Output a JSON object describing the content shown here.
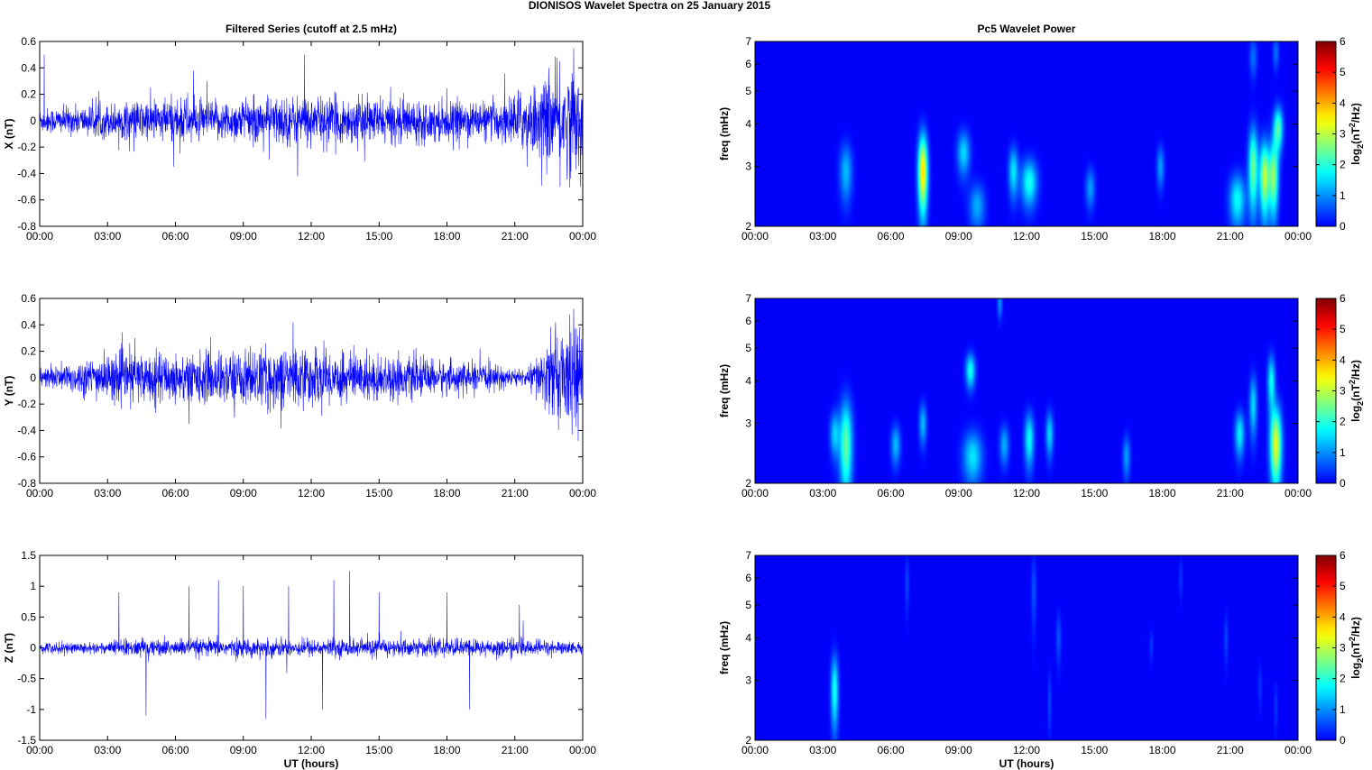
{
  "figure": {
    "suptitle": "DIONISOS Wavelet Spectra on 25 January   2015"
  },
  "chart_data": [
    {
      "type": "line",
      "panel": "X time series",
      "title": "Filtered Series (cutoff at 2.5 mHz)",
      "xlabel": "",
      "ylabel": "X (nT)",
      "xlim": [
        "00:00",
        "24:00"
      ],
      "ylim": [
        -0.8,
        0.6
      ],
      "xticks": [
        "00:00",
        "03:00",
        "06:00",
        "09:00",
        "12:00",
        "15:00",
        "18:00",
        "21:00",
        "00:00"
      ],
      "yticks": [
        "-0.8",
        "-0.6",
        "-0.4",
        "-0.2",
        "0",
        "0.2",
        "0.4",
        "0.6"
      ],
      "series_color": "#0000ff",
      "noise_amplitude_nT": 0.06,
      "envelope": [
        [
          0,
          0.1
        ],
        [
          2,
          0.12
        ],
        [
          6.5,
          0.2
        ],
        [
          7,
          0.15
        ],
        [
          11,
          0.2
        ],
        [
          20,
          0.15
        ],
        [
          22,
          0.3
        ],
        [
          23.5,
          0.45
        ],
        [
          24,
          0.3
        ]
      ],
      "spikes": [
        [
          0.2,
          0.5
        ],
        [
          6.8,
          0.38
        ],
        [
          7.4,
          0.3
        ],
        [
          11.4,
          -0.42
        ],
        [
          11.7,
          0.5
        ],
        [
          22.5,
          0.4
        ],
        [
          23.0,
          -0.5
        ],
        [
          23.6,
          0.55
        ],
        [
          23.9,
          -0.5
        ]
      ]
    },
    {
      "type": "line",
      "panel": "Y time series",
      "title": "",
      "xlabel": "",
      "ylabel": "Y (nT)",
      "xlim": [
        "00:00",
        "24:00"
      ],
      "ylim": [
        -0.8,
        0.6
      ],
      "xticks": [
        "00:00",
        "03:00",
        "06:00",
        "09:00",
        "12:00",
        "15:00",
        "18:00",
        "21:00",
        "00:00"
      ],
      "yticks": [
        "-0.8",
        "-0.6",
        "-0.4",
        "-0.2",
        "0",
        "0.2",
        "0.4",
        "0.6"
      ],
      "series_color": "#0000ff",
      "noise_amplitude_nT": 0.06,
      "envelope": [
        [
          0,
          0.08
        ],
        [
          3.5,
          0.2
        ],
        [
          7,
          0.2
        ],
        [
          11,
          0.25
        ],
        [
          20,
          0.1
        ],
        [
          21.5,
          0.06
        ],
        [
          22.5,
          0.3
        ],
        [
          23.5,
          0.45
        ],
        [
          24,
          0.3
        ]
      ],
      "spikes": [
        [
          4.2,
          0.3
        ],
        [
          6.6,
          -0.35
        ],
        [
          11.2,
          0.42
        ],
        [
          22.8,
          0.42
        ],
        [
          23.6,
          0.52
        ],
        [
          23.8,
          -0.48
        ]
      ]
    },
    {
      "type": "line",
      "panel": "Z time series",
      "title": "",
      "xlabel": "UT (hours)",
      "ylabel": "Z (nT)",
      "xlim": [
        "00:00",
        "24:00"
      ],
      "ylim": [
        -1.5,
        1.5
      ],
      "xticks": [
        "00:00",
        "03:00",
        "06:00",
        "09:00",
        "12:00",
        "15:00",
        "18:00",
        "21:00",
        "00:00"
      ],
      "yticks": [
        "-1.5",
        "-1",
        "-0.5",
        "0",
        "0.5",
        "1",
        "1.5"
      ],
      "series_color": "#0000ff",
      "noise_amplitude_nT": 0.06,
      "envelope": [
        [
          0,
          0.1
        ],
        [
          3,
          0.1
        ],
        [
          3.5,
          0.15
        ],
        [
          21,
          0.15
        ],
        [
          24,
          0.1
        ]
      ],
      "spikes": [
        [
          3.5,
          0.9
        ],
        [
          4.7,
          -1.1
        ],
        [
          6.6,
          1.0
        ],
        [
          7.9,
          1.1
        ],
        [
          9.0,
          1.0
        ],
        [
          10.0,
          -1.15
        ],
        [
          11.0,
          1.0
        ],
        [
          12.5,
          -1.0
        ],
        [
          13.0,
          1.1
        ],
        [
          13.7,
          1.25
        ],
        [
          15.0,
          0.9
        ],
        [
          18.0,
          0.9
        ],
        [
          19.0,
          -1.0
        ],
        [
          21.2,
          0.7
        ]
      ]
    },
    {
      "type": "heatmap",
      "panel": "X wavelet power",
      "title": "Pc5 Wavelet Power",
      "xlabel": "",
      "ylabel": "freq (mHz)",
      "colorbar_label": "log2(nT²/Hz)",
      "xlim": [
        "00:00",
        "24:00"
      ],
      "ylim_mHz": [
        2,
        7
      ],
      "yscale": "log",
      "clim": [
        0,
        6
      ],
      "colormap": "jet",
      "xticks": [
        "00:00",
        "03:00",
        "06:00",
        "09:00",
        "12:00",
        "15:00",
        "18:00",
        "21:00",
        "00:00"
      ],
      "yticks": [
        "2",
        "3",
        "4",
        "5",
        "6",
        "7"
      ],
      "cticks": [
        "0",
        "1",
        "2",
        "3",
        "4",
        "5",
        "6"
      ],
      "blobs": [
        {
          "t": 7.4,
          "f": 2.9,
          "dt": 0.15,
          "df": 0.55,
          "power": 3.7
        },
        {
          "t": 4.0,
          "f": 2.9,
          "dt": 0.2,
          "df": 0.4,
          "power": 1.3
        },
        {
          "t": 9.2,
          "f": 3.3,
          "dt": 0.2,
          "df": 0.35,
          "power": 1.5
        },
        {
          "t": 9.8,
          "f": 2.3,
          "dt": 0.25,
          "df": 0.25,
          "power": 1.2
        },
        {
          "t": 11.4,
          "f": 2.9,
          "dt": 0.15,
          "df": 0.35,
          "power": 1.6
        },
        {
          "t": 12.1,
          "f": 2.7,
          "dt": 0.25,
          "df": 0.3,
          "power": 1.9
        },
        {
          "t": 14.8,
          "f": 2.6,
          "dt": 0.15,
          "df": 0.25,
          "power": 1.1
        },
        {
          "t": 17.9,
          "f": 3.0,
          "dt": 0.12,
          "df": 0.3,
          "power": 1.1
        },
        {
          "t": 21.3,
          "f": 2.4,
          "dt": 0.25,
          "df": 0.3,
          "power": 1.8
        },
        {
          "t": 22.0,
          "f": 3.0,
          "dt": 0.15,
          "df": 0.6,
          "power": 2.5
        },
        {
          "t": 22.5,
          "f": 2.8,
          "dt": 0.15,
          "df": 0.5,
          "power": 3.0
        },
        {
          "t": 22.9,
          "f": 2.8,
          "dt": 0.15,
          "df": 0.5,
          "power": 2.7
        },
        {
          "t": 23.1,
          "f": 3.9,
          "dt": 0.15,
          "df": 0.4,
          "power": 2.3
        },
        {
          "t": 23.0,
          "f": 6.5,
          "dt": 0.1,
          "df": 0.5,
          "power": 0.8
        },
        {
          "t": 22.0,
          "f": 6.3,
          "dt": 0.12,
          "df": 0.6,
          "power": 0.8
        }
      ]
    },
    {
      "type": "heatmap",
      "panel": "Y wavelet power",
      "title": "",
      "xlabel": "",
      "ylabel": "freq (mHz)",
      "colorbar_label": "log2(nT²/Hz)",
      "xlim": [
        "00:00",
        "24:00"
      ],
      "ylim_mHz": [
        2,
        7
      ],
      "yscale": "log",
      "clim": [
        0,
        6
      ],
      "colormap": "jet",
      "xticks": [
        "00:00",
        "03:00",
        "06:00",
        "09:00",
        "12:00",
        "15:00",
        "18:00",
        "21:00",
        "00:00"
      ],
      "yticks": [
        "2",
        "3",
        "4",
        "5",
        "6",
        "7"
      ],
      "cticks": [
        "0",
        "1",
        "2",
        "3",
        "4",
        "5",
        "6"
      ],
      "blobs": [
        {
          "t": 4.0,
          "f": 2.6,
          "dt": 0.2,
          "df": 0.6,
          "power": 2.4
        },
        {
          "t": 3.5,
          "f": 2.8,
          "dt": 0.15,
          "df": 0.3,
          "power": 1.4
        },
        {
          "t": 6.2,
          "f": 2.6,
          "dt": 0.15,
          "df": 0.25,
          "power": 1.3
        },
        {
          "t": 7.4,
          "f": 3.0,
          "dt": 0.12,
          "df": 0.3,
          "power": 1.3
        },
        {
          "t": 9.5,
          "f": 4.3,
          "dt": 0.15,
          "df": 0.35,
          "power": 1.9
        },
        {
          "t": 9.6,
          "f": 2.4,
          "dt": 0.3,
          "df": 0.3,
          "power": 1.6
        },
        {
          "t": 11.0,
          "f": 2.6,
          "dt": 0.15,
          "df": 0.25,
          "power": 1.2
        },
        {
          "t": 12.1,
          "f": 2.7,
          "dt": 0.15,
          "df": 0.35,
          "power": 1.8
        },
        {
          "t": 13.0,
          "f": 2.8,
          "dt": 0.12,
          "df": 0.3,
          "power": 1.5
        },
        {
          "t": 16.4,
          "f": 2.4,
          "dt": 0.12,
          "df": 0.25,
          "power": 1.1
        },
        {
          "t": 21.4,
          "f": 2.8,
          "dt": 0.15,
          "df": 0.3,
          "power": 1.7
        },
        {
          "t": 22.0,
          "f": 3.4,
          "dt": 0.12,
          "df": 0.5,
          "power": 1.5
        },
        {
          "t": 23.0,
          "f": 2.6,
          "dt": 0.18,
          "df": 0.5,
          "power": 3.3
        },
        {
          "t": 22.8,
          "f": 4.0,
          "dt": 0.12,
          "df": 0.5,
          "power": 1.8
        },
        {
          "t": 10.8,
          "f": 6.8,
          "dt": 0.08,
          "df": 0.5,
          "power": 1.0
        }
      ]
    },
    {
      "type": "heatmap",
      "panel": "Z wavelet power",
      "title": "",
      "xlabel": "UT (hours)",
      "ylabel": "freq (mHz)",
      "colorbar_label": "log2(nT²/Hz)",
      "xlim": [
        "00:00",
        "24:00"
      ],
      "ylim_mHz": [
        2,
        7
      ],
      "yscale": "log",
      "clim": [
        0,
        6
      ],
      "colormap": "jet",
      "xticks": [
        "00:00",
        "03:00",
        "06:00",
        "09:00",
        "12:00",
        "15:00",
        "18:00",
        "21:00",
        "00:00"
      ],
      "yticks": [
        "2",
        "3",
        "4",
        "5",
        "6",
        "7"
      ],
      "cticks": [
        "0",
        "1",
        "2",
        "3",
        "4",
        "5",
        "6"
      ],
      "blobs": [
        {
          "t": 3.5,
          "f": 2.8,
          "dt": 0.12,
          "df": 0.5,
          "power": 1.9
        },
        {
          "t": 6.7,
          "f": 5.8,
          "dt": 0.07,
          "df": 0.8,
          "power": 0.5
        },
        {
          "t": 12.3,
          "f": 5.5,
          "dt": 0.08,
          "df": 1.0,
          "power": 0.6
        },
        {
          "t": 13.4,
          "f": 4.0,
          "dt": 0.08,
          "df": 0.5,
          "power": 0.6
        },
        {
          "t": 13.0,
          "f": 2.6,
          "dt": 0.06,
          "df": 0.4,
          "power": 0.5
        },
        {
          "t": 17.5,
          "f": 3.8,
          "dt": 0.06,
          "df": 0.3,
          "power": 0.4
        },
        {
          "t": 18.8,
          "f": 6.0,
          "dt": 0.06,
          "df": 0.6,
          "power": 0.4
        },
        {
          "t": 20.8,
          "f": 4.0,
          "dt": 0.07,
          "df": 0.5,
          "power": 0.5
        },
        {
          "t": 22.3,
          "f": 2.9,
          "dt": 0.06,
          "df": 0.3,
          "power": 0.4
        },
        {
          "t": 23.0,
          "f": 2.5,
          "dt": 0.06,
          "df": 0.3,
          "power": 0.4
        }
      ]
    }
  ]
}
